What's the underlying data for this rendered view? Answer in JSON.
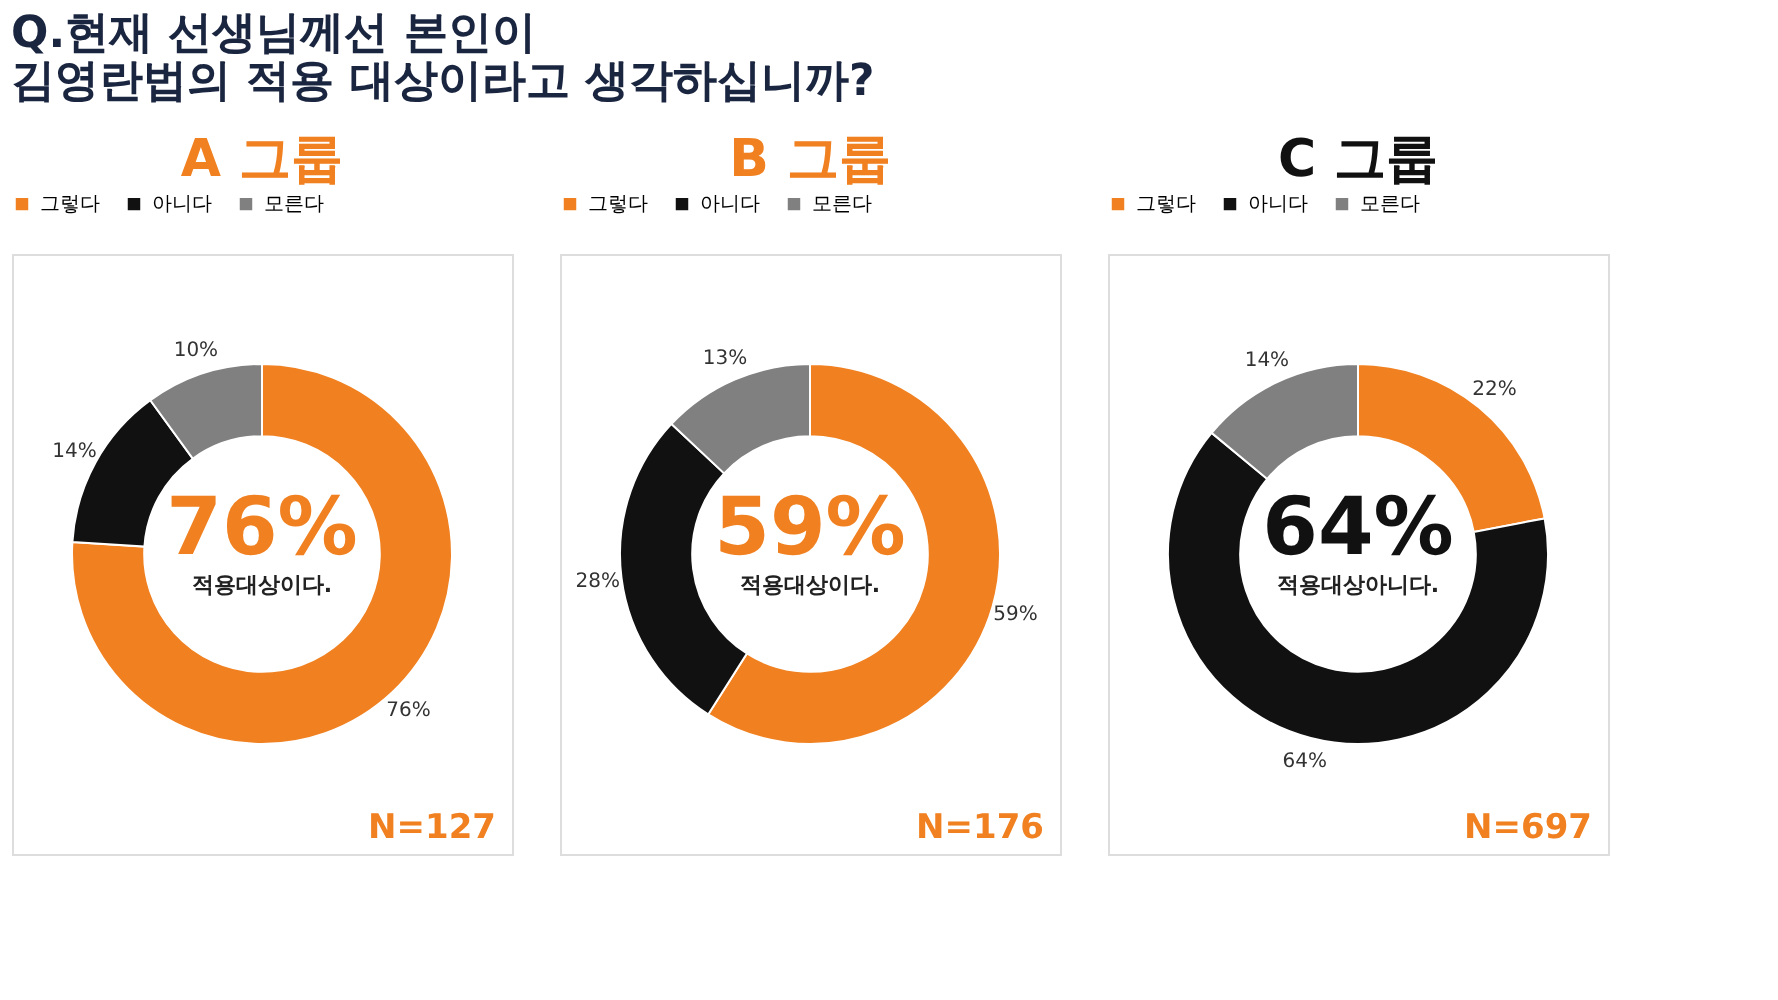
{
  "chart_data": [
    {
      "type": "donut",
      "title": "A 그룹",
      "categories": [
        "그렇다",
        "아니다",
        "모른다"
      ],
      "values": [
        76,
        14,
        10
      ],
      "colors": [
        "#f08020",
        "#111111",
        "#808080"
      ],
      "value_labels": [
        "76%",
        "14%",
        "10%"
      ],
      "legend": "top",
      "annotations": [
        "76%",
        "적용대상이다.",
        "N=127",
        "Q.현재 선생님께선 본인이",
        "김영란법의 적용 대상이라고 생각하십니까?"
      ]
    },
    {
      "type": "donut",
      "title": "B 그룹",
      "categories": [
        "그렇다",
        "아니다",
        "모른다"
      ],
      "values": [
        59,
        28,
        13
      ],
      "colors": [
        "#f08020",
        "#111111",
        "#808080"
      ],
      "value_labels": [
        "59%",
        "28%",
        "13%"
      ],
      "legend": "top",
      "annotations": [
        "59%",
        "적용대상이다.",
        "N=176"
      ]
    },
    {
      "type": "donut",
      "title": "C 그룹",
      "categories": [
        "그렇다",
        "아니다",
        "모른다"
      ],
      "values": [
        22,
        64,
        14
      ],
      "colors": [
        "#f08020",
        "#111111",
        "#808080"
      ],
      "value_labels": [
        "22%",
        "64%",
        "14%"
      ],
      "legend": "top",
      "annotations": [
        "64%",
        "적용대상아니다.",
        "N=697"
      ]
    }
  ]
}
